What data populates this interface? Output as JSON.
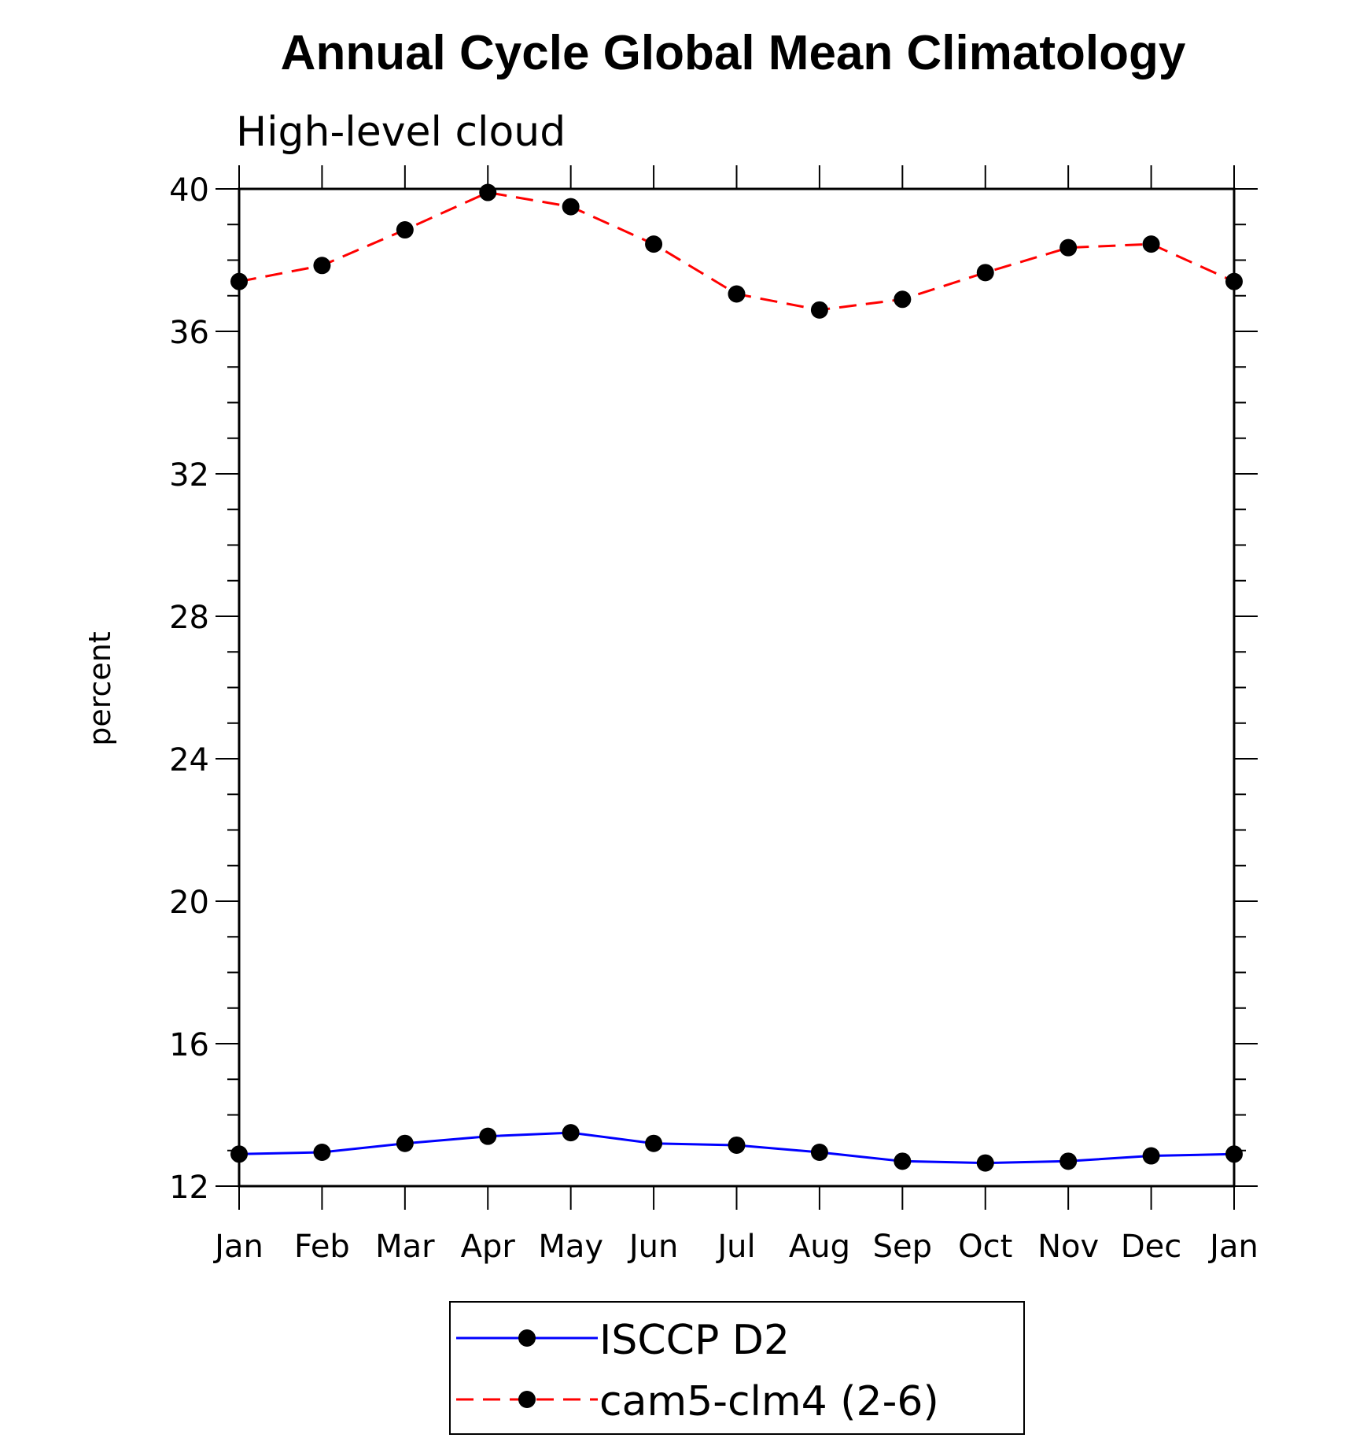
{
  "chart_data": {
    "type": "line",
    "title": "Annual Cycle Global Mean Climatology",
    "subtitle": "High-level cloud",
    "xlabel": "",
    "ylabel": "percent",
    "categories": [
      "Jan",
      "Feb",
      "Mar",
      "Apr",
      "May",
      "Jun",
      "Jul",
      "Aug",
      "Sep",
      "Oct",
      "Nov",
      "Dec",
      "Jan"
    ],
    "ylim": [
      12,
      40
    ],
    "yticks": [
      12,
      16,
      20,
      24,
      28,
      32,
      36,
      40
    ],
    "grid": false,
    "legend_position": "bottom",
    "series": [
      {
        "name": "ISCCP D2",
        "color": "#0000ff",
        "style": "solid",
        "marker": "circle",
        "values": [
          12.9,
          12.95,
          13.2,
          13.4,
          13.5,
          13.2,
          13.15,
          12.95,
          12.7,
          12.65,
          12.7,
          12.85,
          12.9
        ]
      },
      {
        "name": "cam5-clm4 (2-6)",
        "color": "#ff0000",
        "style": "dashed",
        "marker": "circle",
        "values": [
          37.4,
          37.85,
          38.85,
          39.9,
          39.5,
          38.45,
          37.05,
          36.6,
          36.9,
          37.65,
          38.35,
          38.45,
          37.4
        ]
      }
    ]
  }
}
